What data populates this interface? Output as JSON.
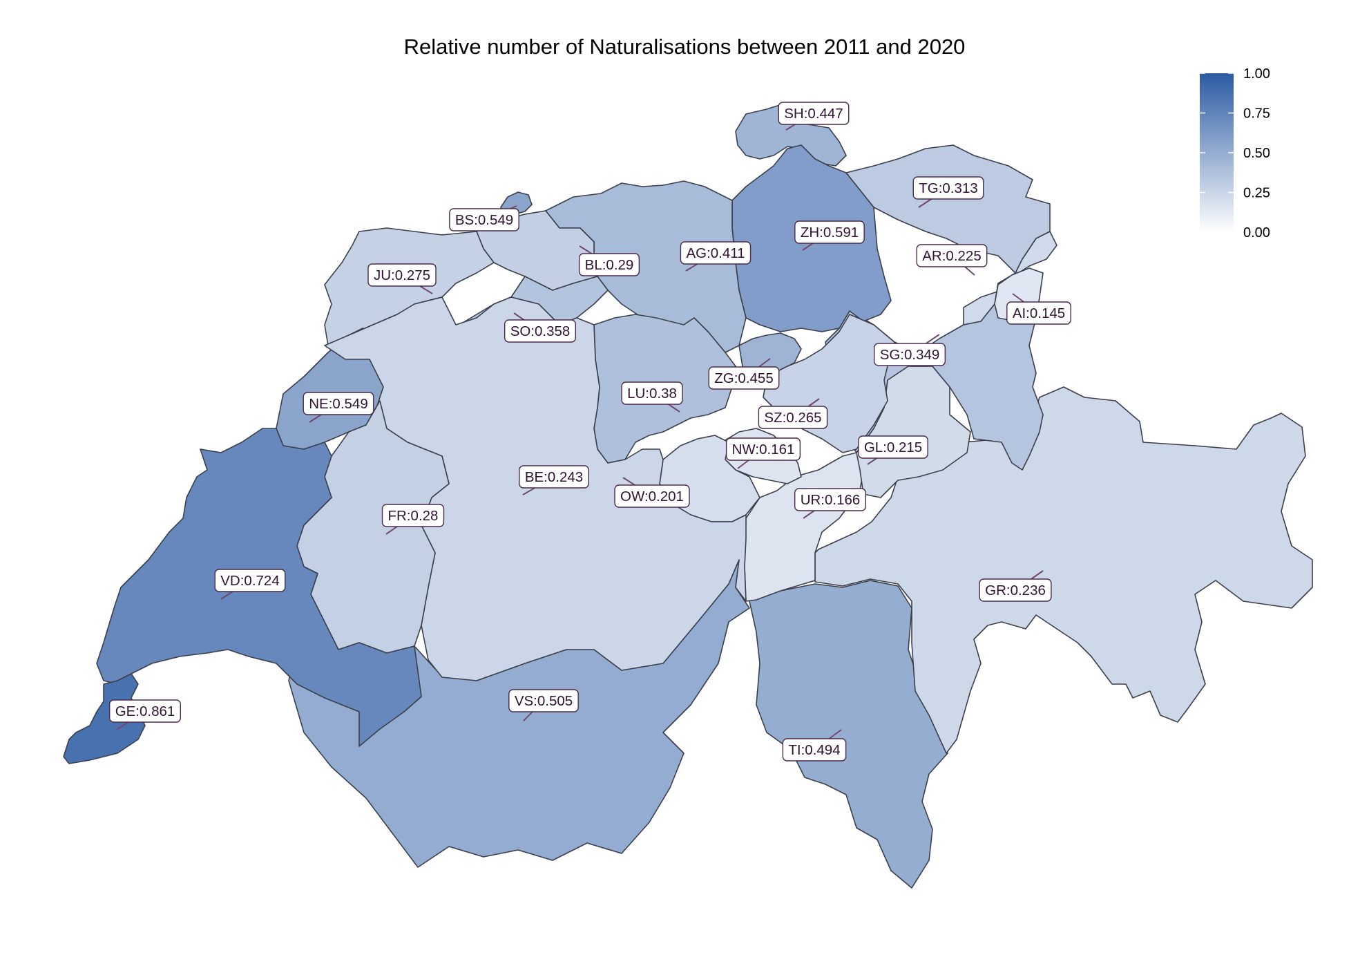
{
  "chart_data": {
    "type": "choropleth-map",
    "title": "Relative number of Naturalisations between 2011 and 2020",
    "legend": {
      "position": "top-right",
      "range": [
        0,
        1
      ],
      "ticks": [
        "1.00",
        "0.75",
        "0.50",
        "0.25",
        "0.00"
      ],
      "color_low": "#ffffff",
      "color_high": "#2b5aa3"
    },
    "regions": [
      {
        "code": "SH",
        "value": 0.447,
        "label": "SH:0.447"
      },
      {
        "code": "TG",
        "value": 0.313,
        "label": "TG:0.313"
      },
      {
        "code": "BS",
        "value": 0.549,
        "label": "BS:0.549"
      },
      {
        "code": "ZH",
        "value": 0.591,
        "label": "ZH:0.591"
      },
      {
        "code": "AG",
        "value": 0.411,
        "label": "AG:0.411"
      },
      {
        "code": "AR",
        "value": 0.225,
        "label": "AR:0.225"
      },
      {
        "code": "BL",
        "value": 0.29,
        "label": "BL:0.29"
      },
      {
        "code": "JU",
        "value": 0.275,
        "label": "JU:0.275"
      },
      {
        "code": "AI",
        "value": 0.145,
        "label": "AI:0.145"
      },
      {
        "code": "SO",
        "value": 0.358,
        "label": "SO:0.358"
      },
      {
        "code": "SG",
        "value": 0.349,
        "label": "SG:0.349"
      },
      {
        "code": "ZG",
        "value": 0.455,
        "label": "ZG:0.455"
      },
      {
        "code": "LU",
        "value": 0.38,
        "label": "LU:0.38"
      },
      {
        "code": "NE",
        "value": 0.549,
        "label": "NE:0.549"
      },
      {
        "code": "SZ",
        "value": 0.265,
        "label": "SZ:0.265"
      },
      {
        "code": "NW",
        "value": 0.161,
        "label": "NW:0.161"
      },
      {
        "code": "GL",
        "value": 0.215,
        "label": "GL:0.215"
      },
      {
        "code": "BE",
        "value": 0.243,
        "label": "BE:0.243"
      },
      {
        "code": "OW",
        "value": 0.201,
        "label": "OW:0.201"
      },
      {
        "code": "UR",
        "value": 0.166,
        "label": "UR:0.166"
      },
      {
        "code": "FR",
        "value": 0.28,
        "label": "FR:0.28"
      },
      {
        "code": "VD",
        "value": 0.724,
        "label": "VD:0.724"
      },
      {
        "code": "GR",
        "value": 0.236,
        "label": "GR:0.236"
      },
      {
        "code": "VS",
        "value": 0.505,
        "label": "VS:0.505"
      },
      {
        "code": "GE",
        "value": 0.861,
        "label": "GE:0.861"
      },
      {
        "code": "TI",
        "value": 0.494,
        "label": "TI:0.494"
      }
    ]
  }
}
